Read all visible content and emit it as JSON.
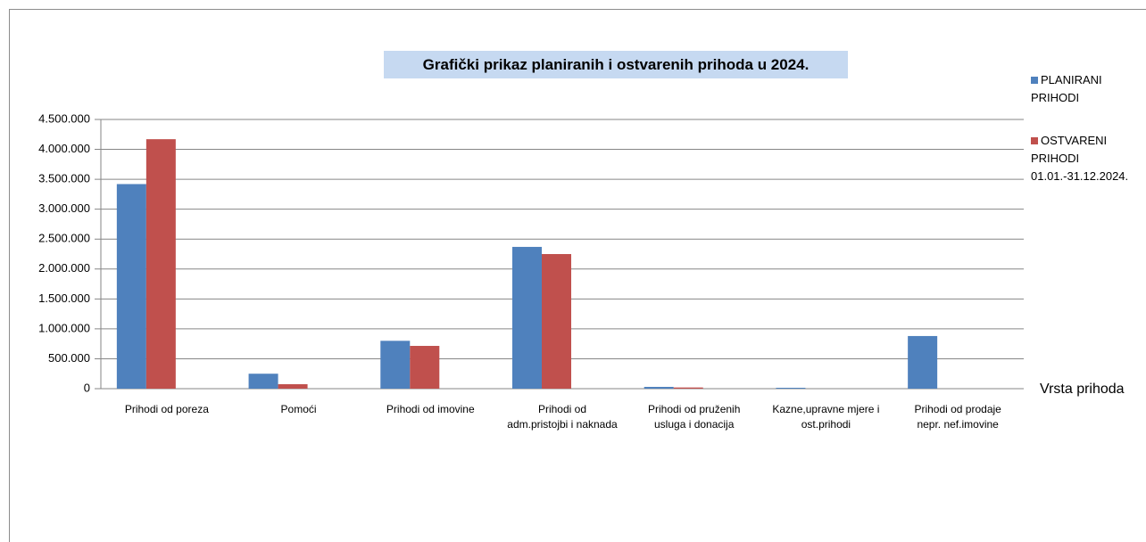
{
  "chart_data": {
    "type": "bar",
    "title": "Grafički prikaz planiranih  i ostvarenih prihoda u 2024.",
    "x_label": "Vrsta prihoda",
    "categories": [
      "Prihodi od poreza",
      "Pomoći",
      "Prihodi od imovine",
      "Prihodi od\nadm.pristojbi i naknada",
      "Prihodi od pruženih\nusluga i donacija",
      "Kazne,upravne mjere i\nost.prihodi",
      "Prihodi od prodaje\nnepr. nef.imovine"
    ],
    "series": [
      {
        "name": "PLANIRANI PRIHODI",
        "color": "#4f81bd",
        "values": [
          3420000,
          250000,
          800000,
          2370000,
          30000,
          15000,
          880000
        ]
      },
      {
        "name": "OSTVARENI PRIHODI 01.01.-31.12.2024.",
        "color": "#c0504d",
        "values": [
          4170000,
          75000,
          715000,
          2250000,
          20000,
          0,
          0
        ]
      }
    ],
    "ylim": [
      0,
      4500000
    ],
    "yticks": [
      0,
      {
        "value": 500000,
        "label": "500.000"
      },
      {
        "value": 1000000,
        "label": "1.000.000"
      },
      {
        "value": 1500000,
        "label": "1.500.000"
      },
      {
        "value": 2000000,
        "label": "2.000.000"
      },
      {
        "value": 2500000,
        "label": "2.500.000"
      },
      {
        "value": 3000000,
        "label": "3.000.000"
      },
      {
        "value": 3500000,
        "label": "3.500.000"
      },
      {
        "value": 4000000,
        "label": "4.000.000"
      },
      {
        "value": 4500000,
        "label": "4.500.000"
      }
    ],
    "grid": true,
    "legend": "right"
  }
}
